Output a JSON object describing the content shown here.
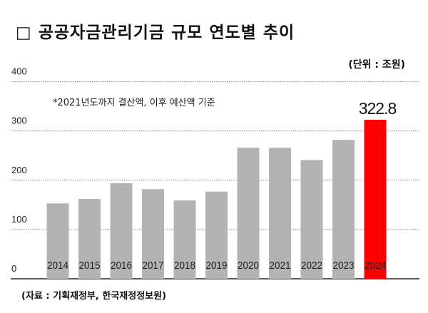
{
  "chart_data": {
    "type": "bar",
    "title": "□ 공공자금관리기금 규모 연도별 추이",
    "unit_label": "(단위 : 조원)",
    "note": "*2021년도까지 결산액, 이후 예산액 기준",
    "source": "(자료 : 기획재정부, 한국재정정보원)",
    "categories": [
      "2014",
      "2015",
      "2016",
      "2017",
      "2018",
      "2019",
      "2020",
      "2021",
      "2022",
      "2023",
      "2024"
    ],
    "values": [
      153,
      162,
      194,
      182,
      159,
      177,
      266,
      266,
      241,
      282,
      322.8
    ],
    "data_labels": {
      "2024": "322.8"
    },
    "ylim": [
      0,
      400
    ],
    "yticks": [
      "0",
      "100",
      "200",
      "300",
      "400"
    ],
    "grid": true,
    "colors": {
      "default": "#b3b3b3",
      "highlight": "#ff0000"
    },
    "highlight_category": "2024"
  }
}
